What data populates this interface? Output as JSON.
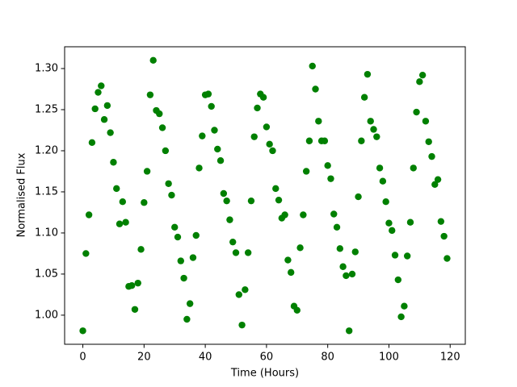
{
  "chart_data": {
    "type": "scatter",
    "xlabel": "Time (Hours)",
    "ylabel": "Normalised Flux",
    "color": "#008000",
    "grid": false,
    "x": [
      0,
      1,
      2,
      3,
      4,
      5,
      6,
      7,
      8,
      9,
      10,
      11,
      12,
      13,
      14,
      15,
      16,
      17,
      18,
      19,
      20,
      21,
      22,
      23,
      24,
      25,
      26,
      27,
      28,
      29,
      30,
      31,
      32,
      33,
      34,
      35,
      36,
      37,
      38,
      39,
      40,
      41,
      42,
      43,
      44,
      45,
      46,
      47,
      48,
      49,
      50,
      51,
      52,
      53,
      54,
      55,
      56,
      57,
      58,
      59,
      60,
      61,
      62,
      63,
      64,
      65,
      66,
      67,
      68,
      69,
      70,
      71,
      72,
      73,
      74,
      75,
      76,
      77,
      78,
      79,
      80,
      81,
      82,
      83,
      84,
      85,
      86,
      87,
      88,
      89,
      90,
      91,
      92,
      93,
      94,
      95,
      96,
      97,
      98,
      99,
      100,
      101,
      102,
      103,
      104,
      105,
      106,
      107,
      108,
      109,
      110,
      111,
      112,
      113,
      114,
      115,
      116,
      117,
      118,
      119
    ],
    "values": [
      0.981,
      1.075,
      1.122,
      1.21,
      1.251,
      1.271,
      1.279,
      1.238,
      1.255,
      1.222,
      1.186,
      1.154,
      1.111,
      1.138,
      1.113,
      1.035,
      1.036,
      1.007,
      1.039,
      1.08,
      1.137,
      1.175,
      1.268,
      1.31,
      1.249,
      1.245,
      1.228,
      1.2,
      1.16,
      1.146,
      1.107,
      1.095,
      1.066,
      1.045,
      0.995,
      1.014,
      1.07,
      1.097,
      1.179,
      1.218,
      1.268,
      1.269,
      1.254,
      1.225,
      1.202,
      1.188,
      1.148,
      1.139,
      1.116,
      1.089,
      1.076,
      1.025,
      0.988,
      1.031,
      1.076,
      1.139,
      1.217,
      1.252,
      1.269,
      1.265,
      1.229,
      1.208,
      1.2,
      1.154,
      1.14,
      1.118,
      1.122,
      1.067,
      1.052,
      1.011,
      1.006,
      1.082,
      1.122,
      1.175,
      1.212,
      1.303,
      1.275,
      1.236,
      1.212,
      1.212,
      1.182,
      1.166,
      1.123,
      1.107,
      1.081,
      1.059,
      1.048,
      0.981,
      1.05,
      1.077,
      1.144,
      1.212,
      1.265,
      1.293,
      1.236,
      1.226,
      1.217,
      1.179,
      1.163,
      1.138,
      1.112,
      1.103,
      1.073,
      1.043,
      0.998,
      1.011,
      1.072,
      1.113,
      1.179,
      1.247,
      1.284,
      1.292,
      1.236,
      1.211,
      1.193,
      1.159,
      1.165,
      1.114,
      1.096,
      1.069
    ],
    "xlim": [
      -5.95,
      124.95
    ],
    "xticks": [
      0,
      20,
      40,
      60,
      80,
      100,
      120
    ],
    "ylim": [
      0.9646,
      1.3265
    ],
    "yticks": [
      {
        "value": 1.0,
        "label": "1.00"
      },
      1.05,
      {
        "value": 1.1,
        "label": "1.10"
      },
      1.15,
      {
        "value": 1.2,
        "label": "1.20"
      },
      1.25,
      {
        "value": 1.3,
        "label": "1.30"
      }
    ]
  }
}
